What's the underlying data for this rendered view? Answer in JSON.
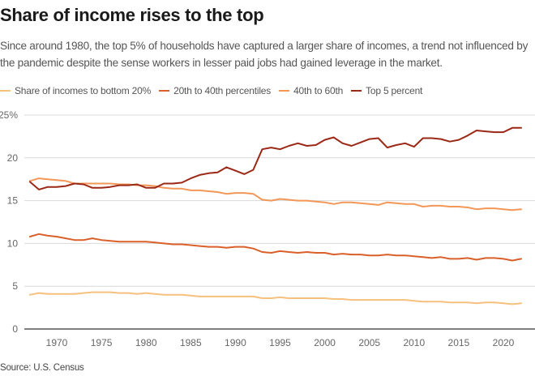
{
  "header": {
    "title": "Share of income rises to the top",
    "subtitle": "Since around 1980, the top 5% of households have captured a larger share of incomes, a trend not influenced by the pandemic despite the sense workers in lesser paid jobs had gained leverage in the market."
  },
  "footer": {
    "source": "Source: U.S. Census"
  },
  "chart_data": {
    "type": "line",
    "title": "Share of income rises to the top",
    "xlabel": "",
    "ylabel": "",
    "xlim": [
      1967,
      2022
    ],
    "ylim": [
      0,
      25
    ],
    "grid": true,
    "legend_position": "top-left",
    "x_ticks": [
      1970,
      1975,
      1980,
      1985,
      1990,
      1995,
      2000,
      2005,
      2010,
      2015,
      2020
    ],
    "x_tick_labels": [
      "1970",
      "1975",
      "1980",
      "1985",
      "1990",
      "1995",
      "2000",
      "2005",
      "2010",
      "2015",
      "2020"
    ],
    "y_ticks": [
      0,
      5,
      10,
      15,
      20,
      25
    ],
    "y_tick_labels": [
      "0",
      "5",
      "10",
      "15",
      "20",
      "25%"
    ],
    "x": [
      1967,
      1968,
      1969,
      1970,
      1971,
      1972,
      1973,
      1974,
      1975,
      1976,
      1977,
      1978,
      1979,
      1980,
      1981,
      1982,
      1983,
      1984,
      1985,
      1986,
      1987,
      1988,
      1989,
      1990,
      1991,
      1992,
      1993,
      1994,
      1995,
      1996,
      1997,
      1998,
      1999,
      2000,
      2001,
      2002,
      2003,
      2004,
      2005,
      2006,
      2007,
      2008,
      2009,
      2010,
      2011,
      2012,
      2013,
      2014,
      2015,
      2016,
      2017,
      2018,
      2019,
      2020,
      2021,
      2022
    ],
    "series": [
      {
        "name": "Share of incomes to bottom 20%",
        "color": "#f6c07e",
        "values": [
          4.0,
          4.2,
          4.1,
          4.1,
          4.1,
          4.1,
          4.2,
          4.3,
          4.3,
          4.3,
          4.2,
          4.2,
          4.1,
          4.2,
          4.1,
          4.0,
          4.0,
          4.0,
          3.9,
          3.8,
          3.8,
          3.8,
          3.8,
          3.8,
          3.8,
          3.8,
          3.6,
          3.6,
          3.7,
          3.6,
          3.6,
          3.6,
          3.6,
          3.6,
          3.5,
          3.5,
          3.4,
          3.4,
          3.4,
          3.4,
          3.4,
          3.4,
          3.4,
          3.3,
          3.2,
          3.2,
          3.2,
          3.1,
          3.1,
          3.1,
          3.0,
          3.1,
          3.1,
          3.0,
          2.9,
          3.0
        ]
      },
      {
        "name": "20th to 40th percentiles",
        "color": "#d9602b",
        "values": [
          10.8,
          11.1,
          10.9,
          10.8,
          10.6,
          10.4,
          10.4,
          10.6,
          10.4,
          10.3,
          10.2,
          10.2,
          10.2,
          10.2,
          10.1,
          10.0,
          9.9,
          9.9,
          9.8,
          9.7,
          9.6,
          9.6,
          9.5,
          9.6,
          9.6,
          9.4,
          9.0,
          8.9,
          9.1,
          9.0,
          8.9,
          9.0,
          8.9,
          8.9,
          8.7,
          8.8,
          8.7,
          8.7,
          8.6,
          8.6,
          8.7,
          8.6,
          8.6,
          8.5,
          8.4,
          8.3,
          8.4,
          8.2,
          8.2,
          8.3,
          8.1,
          8.3,
          8.3,
          8.2,
          8.0,
          8.2
        ]
      },
      {
        "name": "40th to 60th",
        "color": "#f29758",
        "values": [
          17.3,
          17.6,
          17.5,
          17.4,
          17.3,
          17.0,
          17.0,
          17.0,
          17.0,
          17.0,
          16.9,
          16.9,
          16.8,
          16.8,
          16.7,
          16.5,
          16.4,
          16.4,
          16.2,
          16.2,
          16.1,
          16.0,
          15.8,
          15.9,
          15.9,
          15.8,
          15.1,
          15.0,
          15.2,
          15.1,
          15.0,
          15.0,
          14.9,
          14.8,
          14.6,
          14.8,
          14.8,
          14.7,
          14.6,
          14.5,
          14.8,
          14.7,
          14.6,
          14.6,
          14.3,
          14.4,
          14.4,
          14.3,
          14.3,
          14.2,
          14.0,
          14.1,
          14.1,
          14.0,
          13.9,
          14.0
        ]
      },
      {
        "name": "Top 5 percent",
        "color": "#9b2816",
        "values": [
          17.2,
          16.3,
          16.6,
          16.6,
          16.7,
          17.0,
          16.9,
          16.5,
          16.5,
          16.6,
          16.8,
          16.8,
          16.9,
          16.5,
          16.5,
          17.0,
          17.0,
          17.1,
          17.6,
          18.0,
          18.2,
          18.3,
          18.9,
          18.5,
          18.1,
          18.6,
          21.0,
          21.2,
          21.0,
          21.4,
          21.7,
          21.4,
          21.5,
          22.1,
          22.4,
          21.7,
          21.4,
          21.8,
          22.2,
          22.3,
          21.2,
          21.5,
          21.7,
          21.3,
          22.3,
          22.3,
          22.2,
          21.9,
          22.1,
          22.6,
          23.2,
          23.1,
          23.0,
          23.0,
          23.5,
          23.5
        ]
      }
    ]
  }
}
